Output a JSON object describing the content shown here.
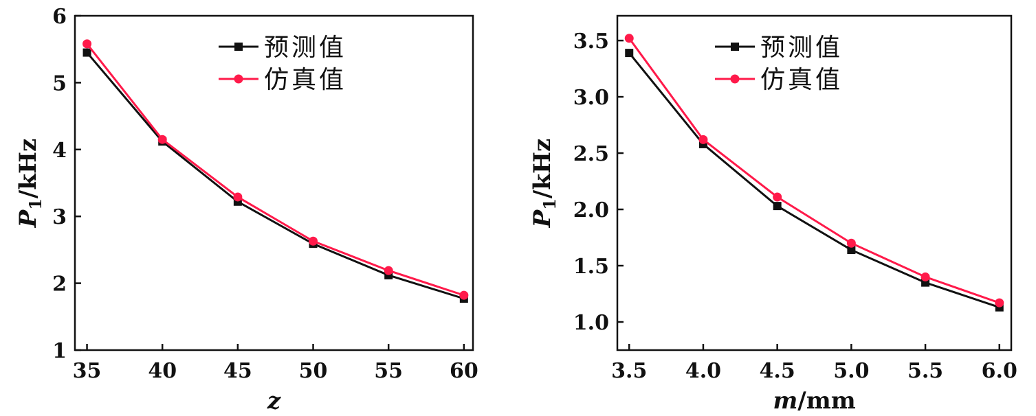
{
  "chart_data": [
    {
      "type": "line",
      "x": [
        35,
        40,
        45,
        50,
        55,
        60
      ],
      "xlabel": "z",
      "ylabel_main": "P",
      "ylabel_sub": "1",
      "ylabel_unit": "/kHz",
      "xlim": [
        34.2,
        60.6
      ],
      "ylim": [
        1,
        6
      ],
      "xticks": [
        "35",
        "40",
        "45",
        "50",
        "55",
        "60"
      ],
      "yticks": [
        "1",
        "2",
        "3",
        "4",
        "5",
        "6"
      ],
      "xtick_values": [
        35,
        40,
        45,
        50,
        55,
        60
      ],
      "ytick_values": [
        1,
        2,
        3,
        4,
        5,
        6
      ],
      "legend_position": "top-center",
      "grid": false,
      "series": [
        {
          "name": "预测值",
          "color": "#111111",
          "marker": "square",
          "values": [
            5.45,
            4.12,
            3.22,
            2.59,
            2.12,
            1.77
          ]
        },
        {
          "name": "仿真值",
          "color": "#ff1a4a",
          "marker": "circle",
          "values": [
            5.58,
            4.15,
            3.29,
            2.63,
            2.19,
            1.82
          ]
        }
      ]
    },
    {
      "type": "line",
      "x": [
        3.5,
        4.0,
        4.5,
        5.0,
        5.5,
        6.0
      ],
      "xlabel_main": "m",
      "xlabel_unit": "/mm",
      "ylabel_main": "P",
      "ylabel_sub": "1",
      "ylabel_unit": "/kHz",
      "xlim": [
        3.42,
        6.08
      ],
      "ylim": [
        0.75,
        3.72
      ],
      "xticks": [
        "3.5",
        "4.0",
        "4.5",
        "5.0",
        "5.5",
        "6.0"
      ],
      "yticks": [
        "1.0",
        "1.5",
        "2.0",
        "2.5",
        "3.0",
        "3.5"
      ],
      "xtick_values": [
        3.5,
        4.0,
        4.5,
        5.0,
        5.5,
        6.0
      ],
      "ytick_values": [
        1.0,
        1.5,
        2.0,
        2.5,
        3.0,
        3.5
      ],
      "legend_position": "top-center",
      "grid": false,
      "series": [
        {
          "name": "预测值",
          "color": "#111111",
          "marker": "square",
          "values": [
            3.39,
            2.58,
            2.03,
            1.64,
            1.35,
            1.13
          ]
        },
        {
          "name": "仿真值",
          "color": "#ff1a4a",
          "marker": "circle",
          "values": [
            3.52,
            2.62,
            2.11,
            1.7,
            1.4,
            1.17
          ]
        }
      ]
    }
  ]
}
